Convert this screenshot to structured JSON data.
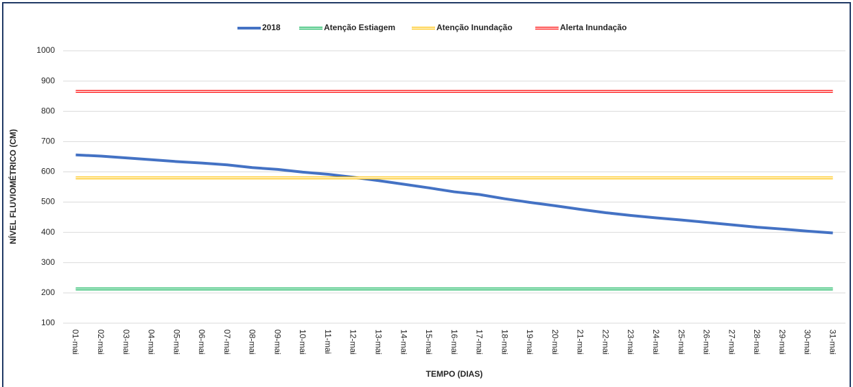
{
  "chart_data": {
    "type": "line",
    "y_label": "NÍVEL FLUVIOMÉTRICO (CM)",
    "x_label": "TEMPO (DIAS)",
    "categories": [
      "01-mai",
      "02-mai",
      "03-mai",
      "04-mai",
      "05-mai",
      "06-mai",
      "07-mai",
      "08-mai",
      "09-mai",
      "10-mai",
      "11-mai",
      "12-mai",
      "13-mai",
      "14-mai",
      "15-mai",
      "16-mai",
      "17-mai",
      "18-mai",
      "19-mai",
      "20-mai",
      "21-mai",
      "22-mai",
      "23-mai",
      "24-mai",
      "25-mai",
      "26-mai",
      "27-mai",
      "28-mai",
      "29-mai",
      "30-mai",
      "31-mai"
    ],
    "series": [
      {
        "name": "2018",
        "color": "#4472c4",
        "values": [
          656,
          652,
          646,
          640,
          634,
          629,
          623,
          614,
          608,
          599,
          592,
          582,
          571,
          559,
          547,
          534,
          525,
          511,
          499,
          488,
          476,
          465,
          456,
          448,
          441,
          433,
          425,
          417,
          411,
          404,
          398
        ]
      },
      {
        "name": "Atenção Estiagem",
        "color": "#00b050",
        "values": [
          213,
          213,
          213,
          213,
          213,
          213,
          213,
          213,
          213,
          213,
          213,
          213,
          213,
          213,
          213,
          213,
          213,
          213,
          213,
          213,
          213,
          213,
          213,
          213,
          213,
          213,
          213,
          213,
          213,
          213,
          213
        ]
      },
      {
        "name": "Atenção Inundação",
        "color": "#ffc000",
        "values": [
          580,
          580,
          580,
          580,
          580,
          580,
          580,
          580,
          580,
          580,
          580,
          580,
          580,
          580,
          580,
          580,
          580,
          580,
          580,
          580,
          580,
          580,
          580,
          580,
          580,
          580,
          580,
          580,
          580,
          580,
          580
        ]
      },
      {
        "name": "Alerta Inundação",
        "color": "#ff0000",
        "values": [
          866,
          866,
          866,
          866,
          866,
          866,
          866,
          866,
          866,
          866,
          866,
          866,
          866,
          866,
          866,
          866,
          866,
          866,
          866,
          866,
          866,
          866,
          866,
          866,
          866,
          866,
          866,
          866,
          866,
          866,
          866
        ]
      }
    ],
    "ylim": [
      100,
      1000
    ],
    "yticks": [
      100,
      200,
      300,
      400,
      500,
      600,
      700,
      800,
      900,
      1000
    ],
    "grid": true,
    "legend": "top"
  }
}
